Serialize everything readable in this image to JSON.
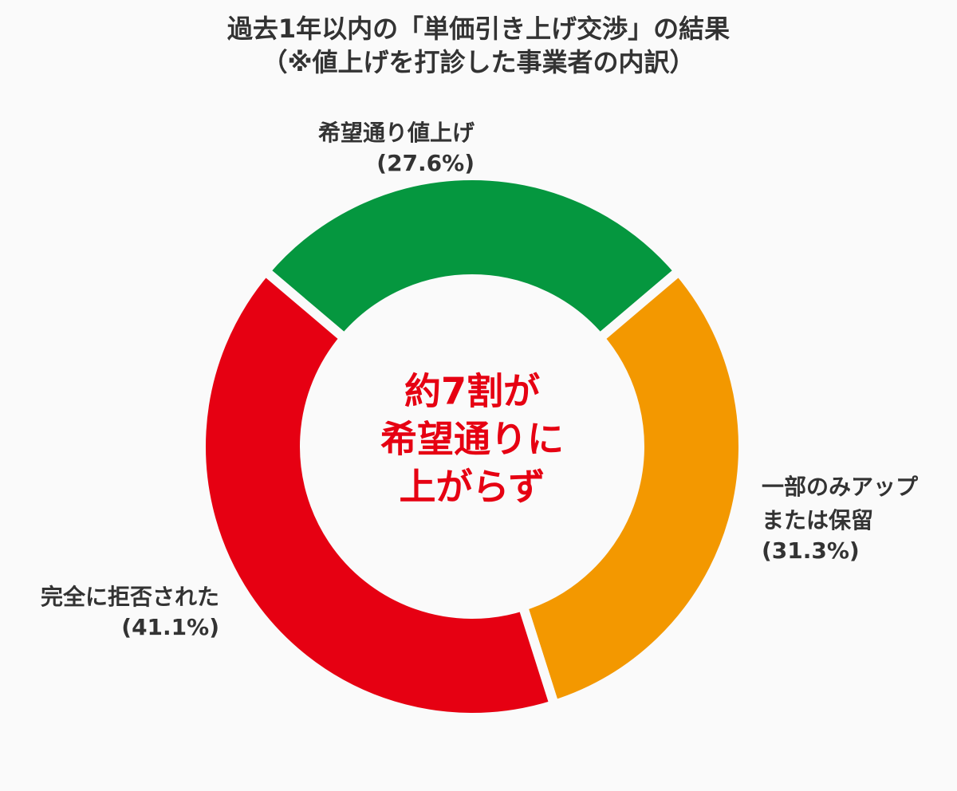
{
  "chart_data": {
    "type": "donut",
    "title": "過去1年以内の「単価引き上げ交渉」の結果",
    "subtitle": "（※値上げを打診した事業者の内訳）",
    "categories": [
      [
        "希望通り値上げ"
      ],
      [
        "一部のみアップ",
        "または保留"
      ],
      [
        "完全に拒否された"
      ]
    ],
    "values": [
      27.6,
      31.3,
      41.1
    ],
    "value_labels": [
      "(27.6%)",
      "(31.3%)",
      "(41.1%)"
    ],
    "colors": [
      "#05973f",
      "#f39800",
      "#e60012"
    ],
    "center_text": [
      "約7割が",
      "希望通りに",
      "上がらず"
    ],
    "center_color": "#e60012"
  }
}
